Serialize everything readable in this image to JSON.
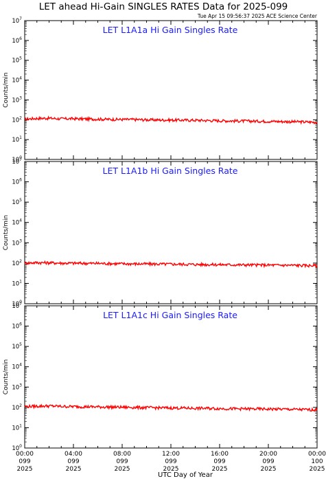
{
  "title": "LET ahead Hi-Gain SINGLES RATES Data for 2025-099",
  "timestamp": "Tue Apr 15 09:56:37 2025 ACE Science Center",
  "xlabel": "UTC Day of Year",
  "ylabel": "Counts/min",
  "colors": {
    "panel_title": "#1a1aff",
    "series": "#ff0000",
    "axis": "#000000"
  },
  "x_ticks": [
    {
      "line1": "00:00",
      "line2": "099",
      "line3": "2025",
      "hour": 0
    },
    {
      "line1": "04:00",
      "line2": "099",
      "line3": "2025",
      "hour": 4
    },
    {
      "line1": "08:00",
      "line2": "099",
      "line3": "2025",
      "hour": 8
    },
    {
      "line1": "12:00",
      "line2": "099",
      "line3": "2025",
      "hour": 12
    },
    {
      "line1": "16:00",
      "line2": "099",
      "line3": "2025",
      "hour": 16
    },
    {
      "line1": "20:00",
      "line2": "099",
      "line3": "2025",
      "hour": 20
    },
    {
      "line1": "00:00",
      "line2": "100",
      "line3": "2025",
      "hour": 24
    }
  ],
  "y_ticks": [
    {
      "base": "10",
      "exp": "0",
      "value": 1
    },
    {
      "base": "10",
      "exp": "1",
      "value": 10
    },
    {
      "base": "10",
      "exp": "2",
      "value": 100
    },
    {
      "base": "10",
      "exp": "3",
      "value": 1000
    },
    {
      "base": "10",
      "exp": "4",
      "value": 10000
    },
    {
      "base": "10",
      "exp": "5",
      "value": 100000
    },
    {
      "base": "10",
      "exp": "6",
      "value": 1000000
    },
    {
      "base": "10",
      "exp": "7",
      "value": 10000000
    }
  ],
  "chart_data": [
    {
      "type": "line",
      "title": "LET L1A1a Hi Gain Singles Rate",
      "xlabel": "UTC Day of Year",
      "ylabel": "Counts/min",
      "xlim": [
        0,
        24
      ],
      "ylim": [
        1,
        10000000
      ],
      "yscale": "log",
      "grid": false,
      "x": [
        0,
        1,
        2,
        3,
        4,
        5,
        6,
        7,
        8,
        9,
        10,
        11,
        12,
        13,
        14,
        15,
        16,
        17,
        18,
        19,
        20,
        21,
        22,
        23,
        24
      ],
      "series": [
        {
          "values": [
            108,
            118,
            120,
            112,
            114,
            110,
            108,
            105,
            104,
            103,
            100,
            98,
            97,
            96,
            95,
            92,
            90,
            88,
            87,
            85,
            84,
            82,
            80,
            78,
            75
          ]
        }
      ]
    },
    {
      "type": "line",
      "title": "LET L1A1b Hi Gain Singles Rate",
      "xlabel": "UTC Day of Year",
      "ylabel": "Counts/min",
      "xlim": [
        0,
        24
      ],
      "ylim": [
        1,
        10000000
      ],
      "yscale": "log",
      "grid": false,
      "x": [
        0,
        1,
        2,
        3,
        4,
        5,
        6,
        7,
        8,
        9,
        10,
        11,
        12,
        13,
        14,
        15,
        16,
        17,
        18,
        19,
        20,
        21,
        22,
        23,
        24
      ],
      "series": [
        {
          "values": [
            100,
            106,
            104,
            100,
            99,
            98,
            97,
            95,
            93,
            92,
            91,
            90,
            89,
            88,
            86,
            85,
            84,
            83,
            82,
            81,
            80,
            79,
            78,
            77,
            75
          ]
        }
      ]
    },
    {
      "type": "line",
      "title": "LET L1A1c Hi Gain Singles Rate",
      "xlabel": "UTC Day of Year",
      "ylabel": "Counts/min",
      "xlim": [
        0,
        24
      ],
      "ylim": [
        1,
        10000000
      ],
      "yscale": "log",
      "grid": false,
      "x": [
        0,
        1,
        2,
        3,
        4,
        5,
        6,
        7,
        8,
        9,
        10,
        11,
        12,
        13,
        14,
        15,
        16,
        17,
        18,
        19,
        20,
        21,
        22,
        23,
        24
      ],
      "series": [
        {
          "values": [
            110,
            115,
            118,
            112,
            110,
            108,
            106,
            104,
            102,
            100,
            98,
            96,
            94,
            93,
            91,
            90,
            88,
            86,
            85,
            84,
            83,
            82,
            80,
            78,
            76
          ]
        }
      ]
    }
  ]
}
